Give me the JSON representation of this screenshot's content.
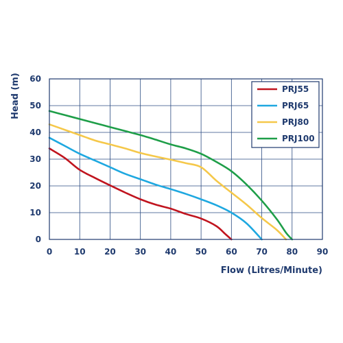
{
  "chart_data": {
    "type": "line",
    "xlabel": "Flow (Litres/Minute)",
    "ylabel": "Head (m)",
    "xlim": [
      0,
      90
    ],
    "ylim": [
      0,
      60
    ],
    "x_ticks": [
      0,
      10,
      20,
      30,
      40,
      50,
      60,
      70,
      80,
      90
    ],
    "y_ticks": [
      0,
      10,
      20,
      30,
      40,
      50,
      60
    ],
    "grid": true,
    "legend_position": "top-right",
    "axis_color": "#1f3a6e",
    "series": [
      {
        "name": "PRJ55",
        "color": "#c0141e",
        "points": [
          [
            0,
            34
          ],
          [
            5,
            30.5
          ],
          [
            10,
            26
          ],
          [
            15,
            23
          ],
          [
            20,
            20.2
          ],
          [
            25,
            17.5
          ],
          [
            30,
            15
          ],
          [
            35,
            13
          ],
          [
            40,
            11.5
          ],
          [
            45,
            9.5
          ],
          [
            50,
            7.8
          ],
          [
            55,
            5
          ],
          [
            58,
            2
          ],
          [
            60,
            0
          ]
        ]
      },
      {
        "name": "PRJ65",
        "color": "#1ea8e0",
        "points": [
          [
            0,
            38
          ],
          [
            5,
            35
          ],
          [
            10,
            32
          ],
          [
            15,
            29.5
          ],
          [
            20,
            27
          ],
          [
            25,
            24.5
          ],
          [
            30,
            22.5
          ],
          [
            35,
            20.5
          ],
          [
            40,
            18.8
          ],
          [
            45,
            17
          ],
          [
            50,
            15
          ],
          [
            55,
            12.8
          ],
          [
            60,
            10
          ],
          [
            65,
            6
          ],
          [
            70,
            0
          ]
        ]
      },
      {
        "name": "PRJ80",
        "color": "#f5c84a",
        "points": [
          [
            0,
            43
          ],
          [
            5,
            41
          ],
          [
            10,
            39
          ],
          [
            15,
            37
          ],
          [
            20,
            35.5
          ],
          [
            25,
            34
          ],
          [
            30,
            32.3
          ],
          [
            35,
            31
          ],
          [
            40,
            29.8
          ],
          [
            45,
            28.5
          ],
          [
            50,
            27
          ],
          [
            55,
            22
          ],
          [
            60,
            17.5
          ],
          [
            65,
            13
          ],
          [
            70,
            8
          ],
          [
            75,
            3.5
          ],
          [
            78,
            0
          ]
        ]
      },
      {
        "name": "PRJ100",
        "color": "#1e9e48",
        "points": [
          [
            0,
            48
          ],
          [
            5,
            46.5
          ],
          [
            10,
            45
          ],
          [
            15,
            43.5
          ],
          [
            20,
            42
          ],
          [
            25,
            40.5
          ],
          [
            30,
            39
          ],
          [
            35,
            37.3
          ],
          [
            40,
            35.5
          ],
          [
            45,
            34
          ],
          [
            50,
            32
          ],
          [
            55,
            29
          ],
          [
            60,
            25.5
          ],
          [
            65,
            20.5
          ],
          [
            70,
            14.5
          ],
          [
            75,
            7.5
          ],
          [
            78,
            2.5
          ],
          [
            80,
            0
          ]
        ]
      }
    ]
  }
}
